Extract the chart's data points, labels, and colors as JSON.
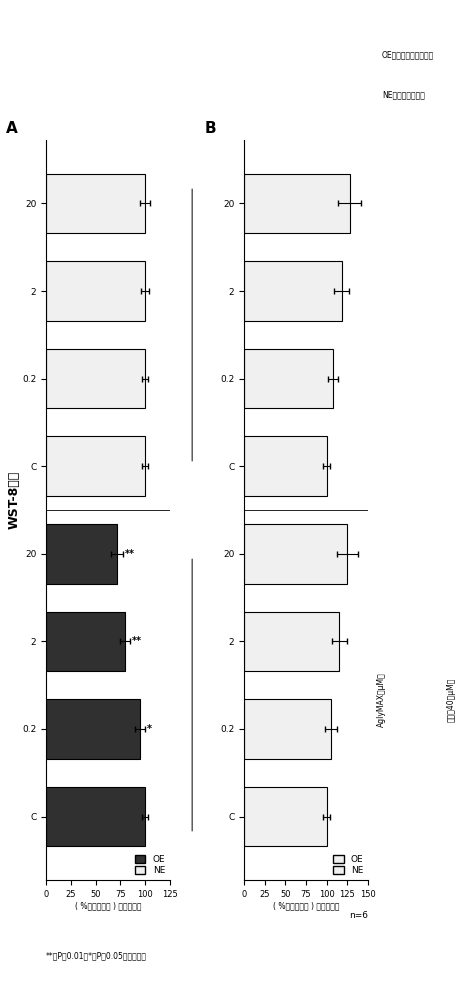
{
  "title": "WST-8分析",
  "panel_A": "A",
  "panel_B": "B",
  "ylabel": "( %对照相对值 ) 细胞增殖能",
  "xlabel_A": "AglyMAX（μM）",
  "xlabel_B": "异黄酠40（μM）",
  "xtick_labels": [
    "C",
    "0.2",
    "2",
    "20",
    "C",
    "0.2",
    "2",
    "20"
  ],
  "OE_text": "OE：子宫内膜异位细胞",
  "NE_text": "NE：正常子宫内膜",
  "footnote": "**：P＜0.01，*：P＜0.05相对于对照",
  "n_note": "n=6",
  "A_vals": [
    100,
    95,
    80,
    72,
    100,
    100,
    100,
    100
  ],
  "A_err": [
    3,
    5,
    5,
    6,
    3,
    3,
    4,
    5
  ],
  "A_colors": [
    "#303030",
    "#303030",
    "#303030",
    "#303030",
    "#f0f0f0",
    "#f0f0f0",
    "#f0f0f0",
    "#f0f0f0"
  ],
  "A_sig": [
    "",
    "*",
    "**",
    "**",
    "",
    "",
    "",
    ""
  ],
  "B_vals": [
    100,
    105,
    115,
    125,
    100,
    108,
    118,
    128
  ],
  "B_err": [
    4,
    7,
    9,
    13,
    4,
    6,
    9,
    14
  ],
  "B_colors": [
    "#f0f0f0",
    "#f0f0f0",
    "#f0f0f0",
    "#f0f0f0",
    "#f0f0f0",
    "#f0f0f0",
    "#f0f0f0",
    "#f0f0f0"
  ],
  "ylim_A": [
    0,
    125
  ],
  "ylim_B": [
    0,
    150
  ],
  "yticks_A": [
    0,
    25,
    50,
    75,
    100,
    125
  ],
  "yticks_B": [
    0,
    25,
    50,
    75,
    100,
    125,
    150
  ],
  "bg": "#ffffff",
  "bar_height": 0.68
}
